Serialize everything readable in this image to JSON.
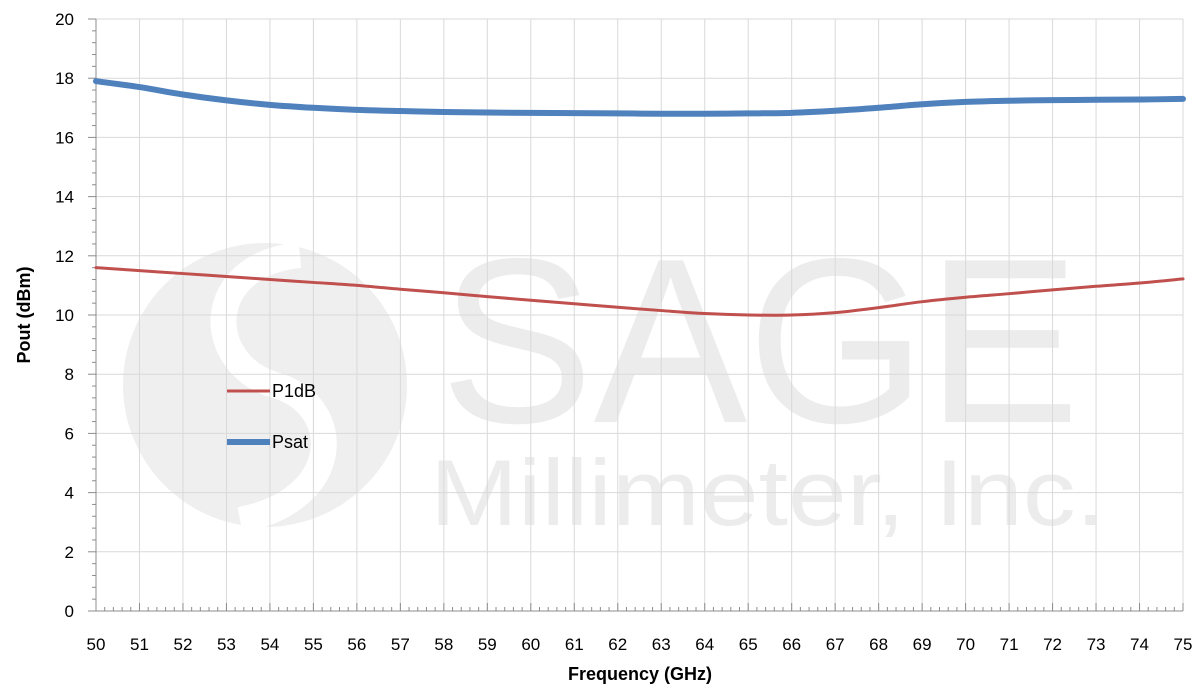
{
  "chart_data": {
    "type": "line",
    "xlabel": "Frequency (GHz)",
    "ylabel": "Pout (dBm)",
    "xlim": [
      50,
      75
    ],
    "ylim": [
      0,
      20
    ],
    "x_ticks": [
      50,
      51,
      52,
      53,
      54,
      55,
      56,
      57,
      58,
      59,
      60,
      61,
      62,
      63,
      64,
      65,
      66,
      67,
      68,
      69,
      70,
      71,
      72,
      73,
      74,
      75
    ],
    "y_ticks": [
      0,
      2,
      4,
      6,
      8,
      10,
      12,
      14,
      16,
      18,
      20
    ],
    "grid": true,
    "legend_position": "left",
    "x": [
      50,
      51,
      52,
      53,
      54,
      55,
      56,
      57,
      58,
      59,
      60,
      61,
      62,
      63,
      64,
      65,
      66,
      67,
      68,
      69,
      70,
      71,
      72,
      73,
      74,
      75
    ],
    "series": [
      {
        "name": "P1dB",
        "color": "#c0504d",
        "values": [
          11.6,
          11.5,
          11.4,
          11.3,
          11.2,
          11.1,
          11.0,
          10.87,
          10.75,
          10.62,
          10.5,
          10.38,
          10.26,
          10.15,
          10.05,
          10.0,
          10.0,
          10.08,
          10.25,
          10.45,
          10.6,
          10.72,
          10.85,
          10.97,
          11.08,
          11.22
        ]
      },
      {
        "name": "Psat",
        "color": "#4f81bd",
        "values": [
          17.9,
          17.7,
          17.45,
          17.25,
          17.1,
          17.0,
          16.93,
          16.89,
          16.86,
          16.84,
          16.83,
          16.82,
          16.81,
          16.8,
          16.8,
          16.81,
          16.83,
          16.9,
          17.0,
          17.12,
          17.2,
          17.24,
          17.26,
          17.27,
          17.28,
          17.3
        ]
      }
    ]
  },
  "watermark": {
    "brand": "SAGE",
    "subtitle": "Millimeter, Inc."
  }
}
